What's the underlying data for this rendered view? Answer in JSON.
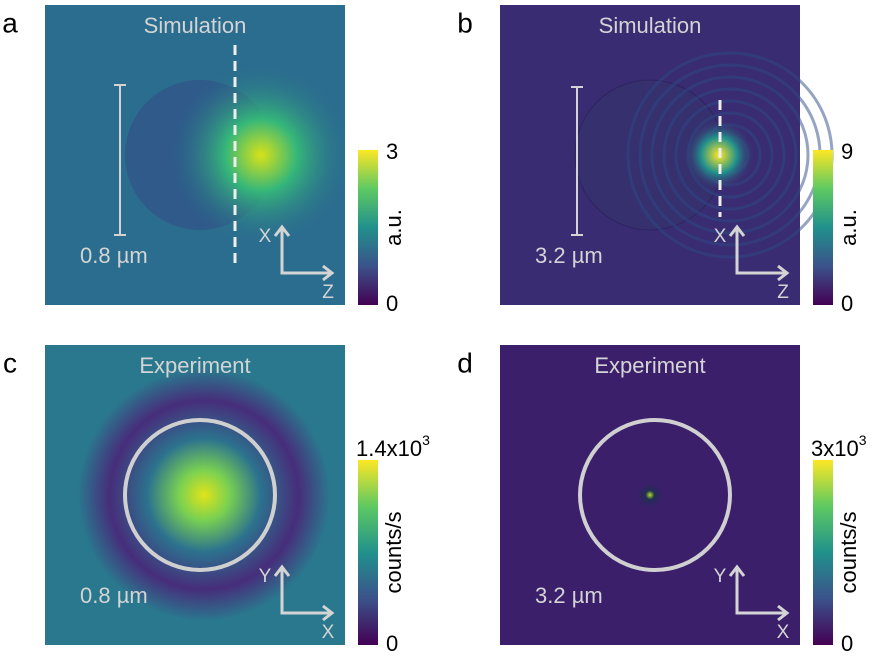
{
  "panels": [
    {
      "label": "a",
      "title": "Simulation",
      "scale": "0.8 µm",
      "axis_vertical": "X",
      "axis_horizontal": "Z",
      "colorbar": {
        "max": "3",
        "min": "0",
        "unit": "a.u."
      }
    },
    {
      "label": "b",
      "title": "Simulation",
      "scale": "3.2 µm",
      "axis_vertical": "X",
      "axis_horizontal": "Z",
      "colorbar": {
        "max": "9",
        "min": "0",
        "unit": "a.u."
      }
    },
    {
      "label": "c",
      "title": "Experiment",
      "scale": "0.8 µm",
      "axis_vertical": "Y",
      "axis_horizontal": "X",
      "colorbar": {
        "max": {
          "base": "1.4x10",
          "exponent": "3"
        },
        "min": "0",
        "unit": "counts/s"
      }
    },
    {
      "label": "d",
      "title": "Experiment",
      "scale": "3.2 µm",
      "axis_vertical": "Y",
      "axis_horizontal": "X",
      "colorbar": {
        "max": {
          "base": "3x10",
          "exponent": "3"
        },
        "min": "0",
        "unit": "counts/s"
      }
    }
  ]
}
